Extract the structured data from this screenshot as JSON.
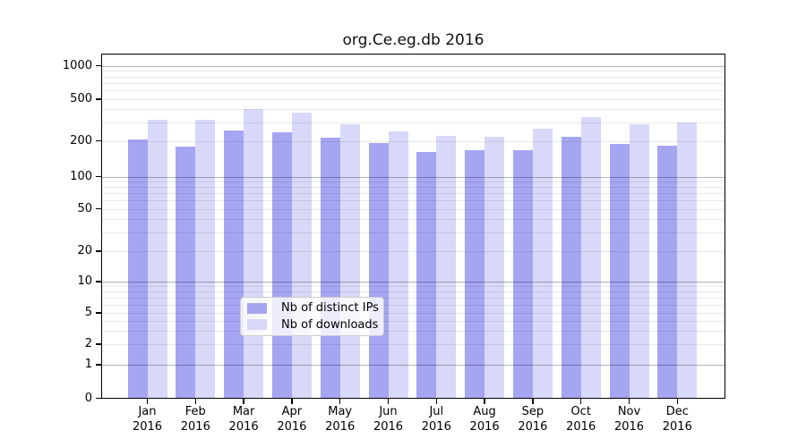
{
  "title": "org.Ce.eg.db 2016",
  "chart_data": {
    "type": "bar",
    "title": "org.Ce.eg.db 2016",
    "categories": [
      "Jan",
      "Feb",
      "Mar",
      "Apr",
      "May",
      "Jun",
      "Jul",
      "Aug",
      "Sep",
      "Oct",
      "Nov",
      "Dec"
    ],
    "year_label": "2016",
    "series": [
      {
        "name": "Nb of distinct IPs",
        "color": "#a5a5f2",
        "values": [
          205,
          180,
          250,
          242,
          215,
          192,
          162,
          168,
          168,
          220,
          188,
          183
        ]
      },
      {
        "name": "Nb of downloads",
        "color": "#d8d8f9",
        "values": [
          320,
          315,
          400,
          375,
          286,
          245,
          225,
          220,
          263,
          340,
          287,
          297
        ]
      }
    ],
    "y_axis": {
      "scale": "symlog",
      "tick_labels": [
        "1000",
        "500",
        "200",
        "100",
        "50",
        "20",
        "10",
        "5",
        "2",
        "1",
        "0"
      ],
      "tick_values": [
        1000,
        500,
        200,
        100,
        50,
        20,
        10,
        5,
        2,
        1,
        0
      ],
      "major_grid_values": [
        1,
        10,
        100,
        1000
      ],
      "minor_grid_values": [
        2,
        3,
        4,
        5,
        6,
        7,
        8,
        9,
        20,
        30,
        40,
        50,
        60,
        70,
        80,
        90,
        200,
        300,
        400,
        500,
        600,
        700,
        800,
        900
      ]
    },
    "legend": {
      "position": "lower center",
      "entries": [
        "Nb of distinct IPs",
        "Nb of downloads"
      ]
    },
    "grid": true,
    "ylim_top_approx": 1280
  },
  "colors": {
    "distinct_ips": "#a5a5f2",
    "downloads": "#d8d8f9",
    "spine": "#000000",
    "legend_border": "#cccccc"
  }
}
